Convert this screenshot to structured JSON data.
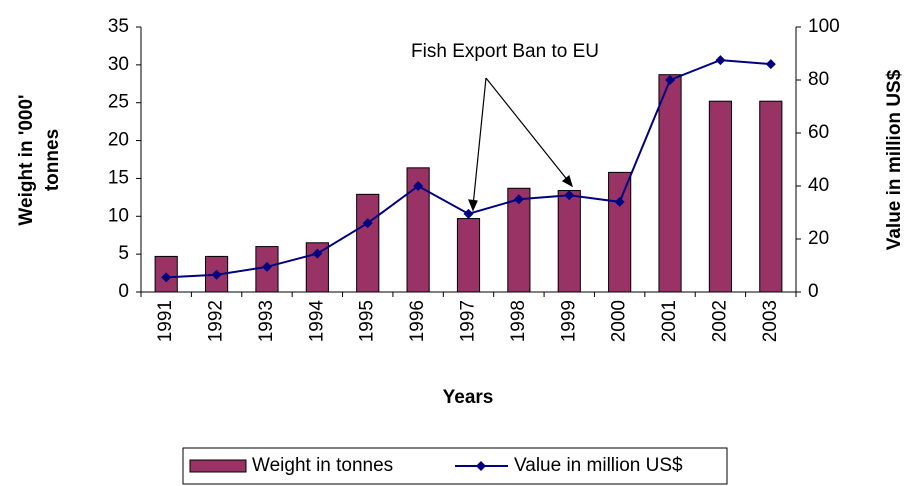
{
  "chart_data": {
    "type": "bar",
    "annotation": "Fish Export Ban to EU",
    "x_label": "Years",
    "y_label": [
      "Weight in '000'",
      "tonnes"
    ],
    "y2_label": "Value in million US$",
    "categories": [
      "1991",
      "1992",
      "1993",
      "1994",
      "1995",
      "1996",
      "1997",
      "1998",
      "1999",
      "2000",
      "2001",
      "2002",
      "2003"
    ],
    "series": [
      {
        "name": "Weight in tonnes",
        "type": "bar",
        "color": "#993366",
        "values": [
          4.7,
          4.7,
          6.0,
          6.5,
          12.9,
          16.4,
          9.7,
          13.7,
          13.4,
          15.8,
          28.7,
          25.2,
          25.2
        ]
      },
      {
        "name": "Value in million US$",
        "type": "line",
        "axis": "y2",
        "color": "#000080",
        "values": [
          5.5,
          6.5,
          9.5,
          14.5,
          26,
          40,
          29.5,
          35,
          36.5,
          34,
          80,
          87.5,
          86
        ]
      }
    ],
    "ylim": [
      0,
      35
    ],
    "yticks": [
      0,
      5,
      10,
      15,
      20,
      25,
      30,
      35
    ],
    "y2lim": [
      0,
      100
    ],
    "y2ticks": [
      0,
      20,
      40,
      60,
      80,
      100
    ],
    "grid": false,
    "legend": "bottom"
  }
}
